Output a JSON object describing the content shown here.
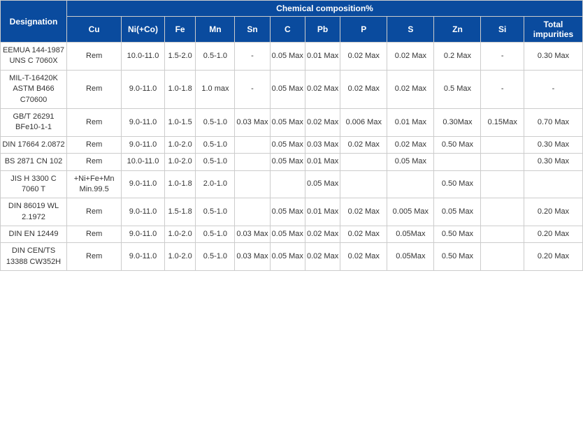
{
  "headers": {
    "designation": "Designation",
    "group": "Chemical composition%",
    "cols": [
      "Cu",
      "Ni(+Co)",
      "Fe",
      "Mn",
      "Sn",
      "C",
      "Pb",
      "P",
      "S",
      "Zn",
      "Si",
      "Total impurities"
    ]
  },
  "rows": [
    {
      "designation": "EEMUA 144-1987 UNS C 7060X",
      "vals": [
        "Rem",
        "10.0-11.0",
        "1.5-2.0",
        "0.5-1.0",
        "-",
        "0.05 Max",
        "0.01 Max",
        "0.02 Max",
        "0.02 Max",
        "0.2 Max",
        "-",
        "0.30 Max"
      ]
    },
    {
      "designation": "MIL-T-16420K ASTM B466 C70600",
      "vals": [
        "Rem",
        "9.0-11.0",
        "1.0-1.8",
        "1.0 max",
        "-",
        "0.05 Max",
        "0.02 Max",
        "0.02 Max",
        "0.02 Max",
        "0.5 Max",
        "-",
        "-"
      ]
    },
    {
      "designation": "GB/T 26291 BFe10-1-1",
      "vals": [
        "Rem",
        "9.0-11.0",
        "1.0-1.5",
        "0.5-1.0",
        "0.03 Max",
        "0.05 Max",
        "0.02 Max",
        "0.006 Max",
        "0.01 Max",
        "0.30Max",
        "0.15Max",
        "0.70 Max"
      ]
    },
    {
      "designation": "DIN 17664 2.0872",
      "vals": [
        "Rem",
        "9.0-11.0",
        "1.0-2.0",
        "0.5-1.0",
        "",
        "0.05 Max",
        "0.03 Max",
        "0.02 Max",
        "0.02 Max",
        "0.50 Max",
        "",
        "0.30 Max"
      ]
    },
    {
      "designation": "BS 2871 CN 102",
      "vals": [
        "Rem",
        "10.0-11.0",
        "1.0-2.0",
        "0.5-1.0",
        "",
        "0.05 Max",
        "0.01 Max",
        "",
        "0.05 Max",
        "",
        "",
        "0.30 Max"
      ]
    },
    {
      "designation": "JIS H 3300 C 7060 T",
      "vals": [
        "+Ni+Fe+Mn Min.99.5",
        "9.0-11.0",
        "1.0-1.8",
        "2.0-1.0",
        "",
        "",
        "0.05 Max",
        "",
        "",
        "0.50 Max",
        "",
        ""
      ]
    },
    {
      "designation": "DIN 86019 WL 2.1972",
      "vals": [
        "Rem",
        "9.0-11.0",
        "1.5-1.8",
        "0.5-1.0",
        "",
        "0.05 Max",
        "0.01 Max",
        "0.02 Max",
        "0.005 Max",
        "0.05 Max",
        "",
        "0.20 Max"
      ]
    },
    {
      "designation": "DIN EN 12449",
      "vals": [
        "Rem",
        "9.0-11.0",
        "1.0-2.0",
        "0.5-1.0",
        "0.03 Max",
        "0.05 Max",
        "0.02 Max",
        "0.02 Max",
        "0.05Max",
        "0.50 Max",
        "",
        "0.20 Max"
      ]
    },
    {
      "designation": "DIN CEN/TS 13388 CW352H",
      "vals": [
        "Rem",
        "9.0-11.0",
        "1.0-2.0",
        "0.5-1.0",
        "0.03 Max",
        "0.05 Max",
        "0.02 Max",
        "0.02 Max",
        "0.05Max",
        "0.50 Max",
        "",
        "0.20 Max"
      ]
    }
  ],
  "colors": {
    "header_bg": "#0a4b9e",
    "header_text": "#ffffff",
    "border": "#cccccc",
    "text": "#333333"
  }
}
